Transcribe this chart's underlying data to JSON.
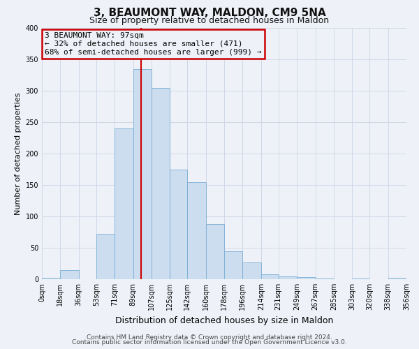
{
  "title": "3, BEAUMONT WAY, MALDON, CM9 5NA",
  "subtitle": "Size of property relative to detached houses in Maldon",
  "xlabel": "Distribution of detached houses by size in Maldon",
  "ylabel": "Number of detached properties",
  "bin_labels": [
    "0sqm",
    "18sqm",
    "36sqm",
    "53sqm",
    "71sqm",
    "89sqm",
    "107sqm",
    "125sqm",
    "142sqm",
    "160sqm",
    "178sqm",
    "196sqm",
    "214sqm",
    "231sqm",
    "249sqm",
    "267sqm",
    "285sqm",
    "303sqm",
    "320sqm",
    "338sqm",
    "356sqm"
  ],
  "bar_heights": [
    2,
    15,
    0,
    72,
    240,
    335,
    305,
    175,
    155,
    88,
    45,
    27,
    8,
    5,
    3,
    1,
    0,
    1,
    0,
    2
  ],
  "bar_color": "#ccddf0",
  "bar_edge_color": "#7aaed4",
  "property_value": 97,
  "property_label": "3 BEAUMONT WAY: 97sqm",
  "smaller_pct": "32%",
  "smaller_count": 471,
  "larger_pct": "68%",
  "larger_count": 999,
  "vline_color": "#cc0000",
  "annotation_box_edge": "#cc0000",
  "footer_line1": "Contains HM Land Registry data © Crown copyright and database right 2024.",
  "footer_line2": "Contains public sector information licensed under the Open Government Licence v3.0.",
  "ylim": [
    0,
    400
  ],
  "yticks": [
    0,
    50,
    100,
    150,
    200,
    250,
    300,
    350,
    400
  ],
  "bin_edges": [
    0,
    18,
    36,
    53,
    71,
    89,
    107,
    125,
    142,
    160,
    178,
    196,
    214,
    231,
    249,
    267,
    285,
    303,
    320,
    338,
    356
  ],
  "grid_color": "#d0d8e8",
  "background_color": "#eef2f8",
  "title_fontsize": 11,
  "subtitle_fontsize": 9,
  "xlabel_fontsize": 9,
  "ylabel_fontsize": 8,
  "tick_fontsize": 7,
  "annotation_fontsize": 8,
  "footer_fontsize": 6.5
}
